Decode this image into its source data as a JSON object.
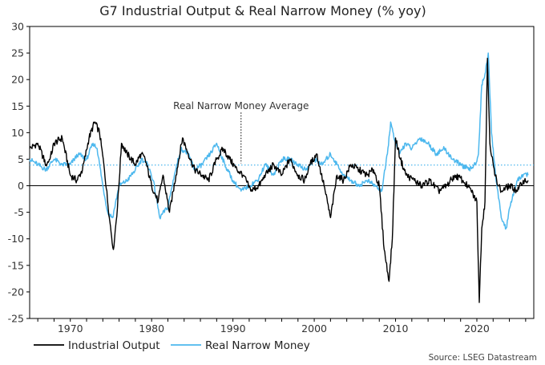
{
  "chart_data": {
    "type": "line",
    "title": "G7 Industrial Output & Real Narrow Money (% yoy)",
    "xlabel": "",
    "ylabel": "",
    "xlim": [
      1965,
      2027
    ],
    "ylim": [
      -25,
      30
    ],
    "yticks": [
      30,
      25,
      20,
      15,
      10,
      5,
      0,
      -5,
      -10,
      -15,
      -20,
      -25
    ],
    "xticks": [
      1970,
      1980,
      1990,
      2000,
      2010,
      2020
    ],
    "grid": false,
    "legend_position": "bottom-left",
    "average_line": {
      "label": "Real Narrow Money Average",
      "value": 3.9,
      "annotation_year": 1991
    },
    "source": "Source: LSEG Datastream",
    "series": [
      {
        "name": "Industrial Output",
        "color": "#000000",
        "x": [
          1965,
          1966,
          1967,
          1967.5,
          1968,
          1969,
          1970,
          1970.8,
          1971.5,
          1972.3,
          1973,
          1973.6,
          1974.2,
          1974.8,
          1975.3,
          1975.8,
          1976.3,
          1977,
          1978,
          1978.7,
          1979.2,
          1980,
          1980.8,
          1981.4,
          1982.2,
          1983,
          1983.8,
          1984.5,
          1985.3,
          1986.2,
          1987,
          1988,
          1988.8,
          1989.6,
          1990.5,
          1991.3,
          1992.2,
          1993.2,
          1994,
          1995,
          1996,
          1997,
          1998,
          1998.8,
          1999.5,
          2000.3,
          2001.2,
          2002,
          2002.8,
          2003.6,
          2004.5,
          2005.5,
          2006.5,
          2007.3,
          2008,
          2008.6,
          2009.2,
          2009.6,
          2010,
          2010.6,
          2011.3,
          2012.3,
          2013.2,
          2014.2,
          2015.3,
          2016.3,
          2017.3,
          2018.3,
          2019.3,
          2020,
          2020.3,
          2020.6,
          2021,
          2021.3,
          2021.6,
          2022.2,
          2023,
          2024,
          2025,
          2025.7,
          2026.3
        ],
        "y": [
          7,
          8,
          4,
          5,
          8,
          9,
          2,
          1,
          3,
          9,
          12,
          10,
          3,
          -6,
          -12,
          -4,
          8,
          6,
          4,
          6,
          5,
          0,
          -3,
          2,
          -5,
          2,
          9,
          6,
          3,
          2,
          1,
          5,
          7,
          5,
          3,
          2,
          -1,
          0,
          2,
          4,
          2,
          5,
          2,
          1,
          4,
          6,
          0,
          -6,
          2,
          1,
          4,
          3,
          2,
          3,
          0,
          -12,
          -18,
          -10,
          9,
          5,
          2,
          1,
          0,
          1,
          -1,
          0,
          2,
          1,
          -1,
          -3,
          -22,
          -8,
          -3,
          24,
          8,
          2,
          -1,
          0,
          -1,
          1,
          1
        ]
      },
      {
        "name": "Real Narrow Money",
        "color": "#4db8ee",
        "x": [
          1965,
          1966,
          1967,
          1968,
          1969,
          1970,
          1971,
          1972,
          1972.8,
          1973.3,
          1974,
          1974.6,
          1975.2,
          1976,
          1977,
          1978,
          1978.8,
          1979.5,
          1980.2,
          1981,
          1982,
          1982.8,
          1983.6,
          1984.5,
          1985.3,
          1986.2,
          1987.2,
          1988,
          1989,
          1990,
          1991,
          1992,
          1993,
          1994,
          1995,
          1996,
          1997,
          1998,
          1999,
          2000,
          2001,
          2002,
          2002.8,
          2003.6,
          2004.5,
          2005.5,
          2006.5,
          2007.5,
          2008.3,
          2009,
          2009.4,
          2009.8,
          2010.5,
          2011.2,
          2012,
          2013,
          2014,
          2015,
          2016,
          2017,
          2018,
          2019,
          2019.8,
          2020.2,
          2020.6,
          2021,
          2021.4,
          2021.8,
          2022.3,
          2023,
          2023.6,
          2024.2,
          2025,
          2025.7,
          2026.3
        ],
        "y": [
          5,
          4,
          3,
          5,
          4,
          4,
          6,
          5,
          8,
          7,
          0,
          -5,
          -6,
          0,
          1,
          3,
          5,
          4,
          1,
          -6,
          -4,
          2,
          7,
          6,
          3,
          4,
          6,
          8,
          4,
          1,
          -1,
          0,
          1,
          4,
          2,
          5,
          5,
          4,
          3,
          5,
          4,
          6,
          4,
          2,
          1,
          0,
          1,
          0,
          -1,
          6,
          12,
          9,
          6,
          8,
          7,
          9,
          8,
          6,
          7,
          5,
          4,
          3,
          4,
          6,
          19,
          21,
          25,
          10,
          2,
          -6,
          -8,
          -3,
          1,
          2,
          2
        ]
      }
    ]
  }
}
